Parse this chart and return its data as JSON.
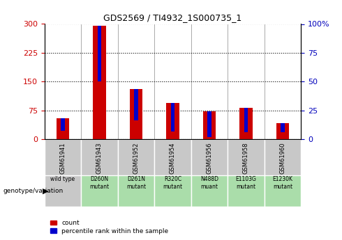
{
  "title": "GDS2569 / TI4932_1S000735_1",
  "samples": [
    "GSM61941",
    "GSM61943",
    "GSM61952",
    "GSM61954",
    "GSM61956",
    "GSM61958",
    "GSM61960"
  ],
  "genotypes": [
    "wild type",
    "D260N\nmutant",
    "D261N\nmutant",
    "R320C\nmutant",
    "N488D\nmuant",
    "E1103G\nmutant",
    "E1230K\nmutant"
  ],
  "counts": [
    55,
    295,
    130,
    95,
    72,
    82,
    42
  ],
  "percentile_ranks": [
    11,
    48,
    27,
    25,
    22,
    21,
    8
  ],
  "ylim_left": [
    0,
    300
  ],
  "ylim_right": [
    0,
    100
  ],
  "yticks_left": [
    0,
    75,
    150,
    225,
    300
  ],
  "yticks_right": [
    0,
    25,
    50,
    75,
    100
  ],
  "bar_color": "#cc0000",
  "percentile_color": "#0000cc",
  "left_tick_color": "#cc0000",
  "right_tick_color": "#0000bb",
  "grid_color": "#000000",
  "sample_bg_color": "#c8c8c8",
  "genotype_bg_color": "#aaddaa",
  "wild_type_bg_color": "#c8c8c8",
  "bar_width": 0.35,
  "percentile_bar_width": 0.1
}
